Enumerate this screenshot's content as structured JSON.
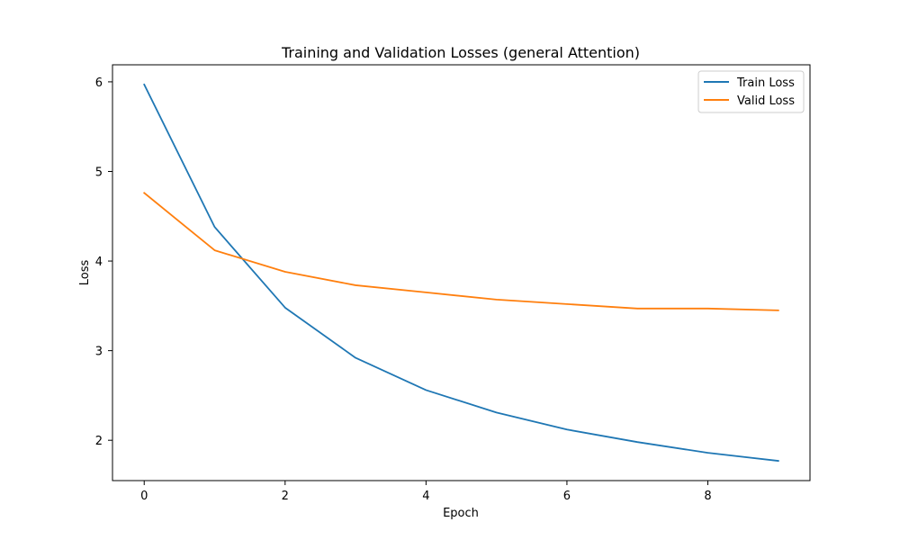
{
  "chart_data": {
    "type": "line",
    "title": "Training and Validation Losses (general Attention)",
    "xlabel": "Epoch",
    "ylabel": "Loss",
    "x": [
      0,
      1,
      2,
      3,
      4,
      5,
      6,
      7,
      8,
      9
    ],
    "xlim": [
      -0.45,
      9.45
    ],
    "ylim": [
      1.55,
      6.19
    ],
    "xticks": [
      0,
      2,
      4,
      6,
      8
    ],
    "yticks": [
      2,
      3,
      4,
      5,
      6
    ],
    "grid": false,
    "legend_position": "top-right",
    "series": [
      {
        "name": "Train Loss",
        "color": "#1f77b4",
        "values": [
          5.97,
          4.38,
          3.48,
          2.92,
          2.56,
          2.31,
          2.12,
          1.98,
          1.86,
          1.77
        ]
      },
      {
        "name": "Valid Loss",
        "color": "#ff7f0e",
        "values": [
          4.76,
          4.12,
          3.88,
          3.73,
          3.65,
          3.57,
          3.52,
          3.47,
          3.47,
          3.45
        ]
      }
    ]
  }
}
